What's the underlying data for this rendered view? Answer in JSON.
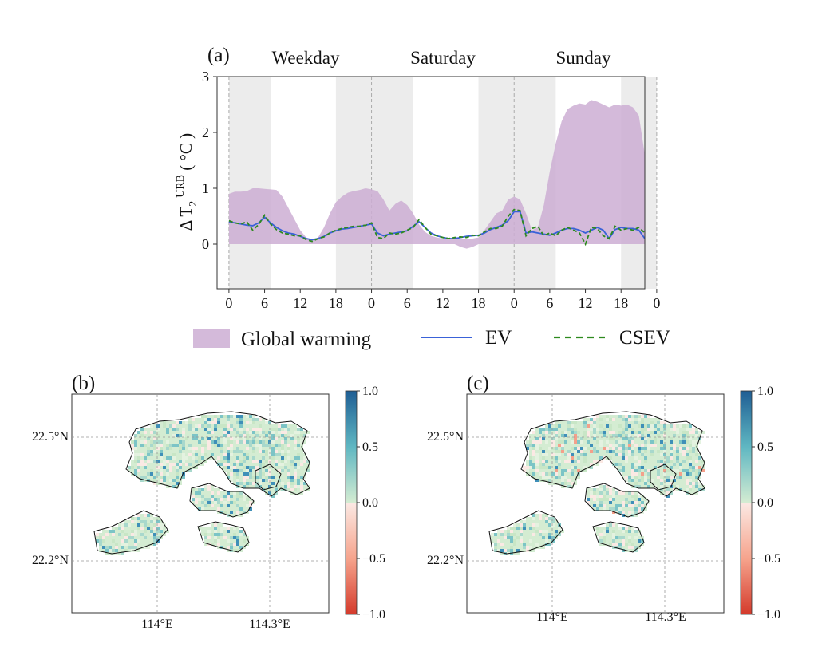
{
  "chart_data": [
    {
      "panel": "(a)",
      "type": "area+line",
      "ylabel": "Δ T2 URB ( °C )",
      "ylabel_main": "Δ T",
      "ylabel_sub": "2",
      "ylabel_sup": "URB",
      "ylabel_unit": " ( °C )",
      "ylim": [
        -0.8,
        3
      ],
      "yticks": [
        0,
        1,
        2,
        3
      ],
      "ytick_labels": [
        "0",
        "1",
        "2",
        "3"
      ],
      "xlim": [
        -2,
        70
      ],
      "xticks": [
        0,
        6,
        12,
        18,
        24,
        30,
        36,
        42,
        48,
        54,
        60,
        66,
        72
      ],
      "xtick_labels": [
        "0",
        "6",
        "12",
        "18",
        "0",
        "6",
        "12",
        "18",
        "0",
        "6",
        "12",
        "18",
        "0"
      ],
      "day_labels": [
        "Weekday",
        "Saturday",
        "Sunday"
      ],
      "shaded_hours": [
        [
          0,
          7
        ],
        [
          18,
          31
        ],
        [
          42,
          55
        ],
        [
          66,
          72
        ]
      ],
      "dashed_vlines": [
        0,
        24,
        48,
        72
      ],
      "legend": {
        "placement": "below",
        "entries": [
          "Global warming",
          "EV",
          "CSEV"
        ]
      },
      "x": [
        0,
        1,
        2,
        3,
        4,
        5,
        6,
        7,
        8,
        9,
        10,
        11,
        12,
        13,
        14,
        15,
        16,
        17,
        18,
        19,
        20,
        21,
        22,
        23,
        24,
        25,
        26,
        27,
        28,
        29,
        30,
        31,
        32,
        33,
        34,
        35,
        36,
        37,
        38,
        39,
        40,
        41,
        42,
        43,
        44,
        45,
        46,
        47,
        48,
        49,
        50,
        51,
        52,
        53,
        54,
        55,
        56,
        57,
        58,
        59,
        60,
        61,
        62,
        63,
        64,
        65,
        66,
        67,
        68,
        69,
        70,
        71,
        72
      ],
      "series": [
        {
          "name": "Global warming",
          "style": "filled-area",
          "color": "#cdaed3",
          "upper": [
            0.9,
            0.94,
            0.94,
            0.95,
            1.0,
            1.0,
            0.99,
            0.98,
            0.97,
            0.85,
            0.65,
            0.45,
            0.25,
            0.12,
            0.08,
            0.12,
            0.3,
            0.55,
            0.75,
            0.85,
            0.92,
            0.95,
            0.97,
            1.0,
            0.98,
            0.95,
            0.8,
            0.6,
            0.72,
            0.78,
            0.7,
            0.55,
            0.35,
            0.22,
            0.15,
            0.12,
            0.1,
            0.1,
            0.1,
            0.1,
            0.1,
            0.1,
            0.12,
            0.25,
            0.4,
            0.55,
            0.6,
            0.8,
            0.85,
            0.8,
            0.55,
            0.25,
            0.3,
            0.7,
            1.3,
            1.8,
            2.2,
            2.42,
            2.48,
            2.52,
            2.5,
            2.58,
            2.55,
            2.5,
            2.45,
            2.5,
            2.48,
            2.5,
            2.45,
            2.3,
            1.6,
            null,
            null
          ],
          "lower": [
            0,
            0,
            0,
            0,
            0,
            0,
            0,
            0,
            0,
            0,
            0,
            0,
            0,
            0,
            0,
            0,
            0,
            0,
            0,
            0,
            0,
            0,
            0,
            0,
            0,
            0,
            0,
            0,
            0,
            0,
            0,
            0,
            0,
            0,
            0,
            0,
            0,
            0,
            0,
            -0.05,
            -0.08,
            -0.05,
            0,
            0,
            0,
            0,
            0,
            0,
            0,
            0,
            0,
            0,
            0,
            0,
            0,
            0,
            0,
            0,
            0,
            0,
            0,
            0,
            0,
            0,
            0,
            0,
            0,
            0,
            0,
            0,
            0,
            null,
            null
          ]
        },
        {
          "name": "EV",
          "style": "solid-line",
          "color": "#3a62d8",
          "values": [
            0.4,
            0.38,
            0.36,
            0.34,
            0.33,
            0.38,
            0.48,
            0.38,
            0.3,
            0.24,
            0.2,
            0.18,
            0.14,
            0.1,
            0.08,
            0.1,
            0.14,
            0.2,
            0.24,
            0.27,
            0.28,
            0.3,
            0.32,
            0.34,
            0.36,
            0.2,
            0.15,
            0.18,
            0.2,
            0.22,
            0.24,
            0.32,
            0.4,
            0.3,
            0.2,
            0.15,
            0.12,
            0.1,
            0.1,
            0.12,
            0.14,
            0.15,
            0.16,
            0.2,
            0.26,
            0.3,
            0.34,
            0.42,
            0.58,
            0.58,
            0.2,
            0.22,
            0.2,
            0.18,
            0.16,
            0.2,
            0.25,
            0.28,
            0.28,
            0.25,
            0.2,
            0.25,
            0.3,
            0.25,
            0.1,
            0.26,
            0.3,
            0.28,
            0.28,
            0.25,
            0.1,
            null,
            null
          ]
        },
        {
          "name": "CSEV",
          "style": "dashed-line",
          "color": "#2d8a1e",
          "values": [
            0.42,
            0.38,
            0.36,
            0.4,
            0.25,
            0.35,
            0.52,
            0.36,
            0.26,
            0.2,
            0.18,
            0.15,
            0.15,
            0.08,
            0.05,
            0.1,
            0.13,
            0.2,
            0.25,
            0.28,
            0.3,
            0.32,
            0.32,
            0.34,
            0.38,
            0.12,
            0.1,
            0.2,
            0.18,
            0.2,
            0.25,
            0.3,
            0.44,
            0.3,
            0.18,
            0.15,
            0.12,
            0.1,
            0.12,
            0.13,
            0.12,
            0.16,
            0.15,
            0.22,
            0.28,
            0.28,
            0.32,
            0.5,
            0.62,
            0.6,
            0.15,
            0.28,
            0.32,
            0.15,
            0.2,
            0.15,
            0.25,
            0.3,
            0.25,
            0.2,
            0.0,
            0.3,
            0.28,
            0.15,
            0.1,
            0.32,
            0.25,
            0.28,
            0.25,
            0.3,
            0.2,
            null,
            null
          ]
        }
      ]
    },
    {
      "panel": "(b)",
      "type": "heatmap",
      "lat_labels": [
        "22.5°N",
        "22.2°N"
      ],
      "lon_labels": [
        "114°E",
        "114.3°E"
      ],
      "colorbar_ticks": [
        "1.0",
        "0.5",
        "0.0",
        "−0.5",
        "−1.0"
      ],
      "colorbar_range": [
        -1.0,
        1.0
      ],
      "colormap": [
        "#d43a2b",
        "#f6a48d",
        "#fbe9e4",
        "#d4ecd2",
        "#5fb7c2",
        "#1f5e94"
      ]
    },
    {
      "panel": "(c)",
      "type": "heatmap",
      "lat_labels": [
        "22.5°N",
        "22.2°N"
      ],
      "lon_labels": [
        "114°E",
        "114.3°E"
      ],
      "colorbar_ticks": [
        "1.0",
        "0.5",
        "0.0",
        "−0.5",
        "−1.0"
      ],
      "colorbar_range": [
        -1.0,
        1.0
      ],
      "colormap": [
        "#d43a2b",
        "#f6a48d",
        "#fbe9e4",
        "#d4ecd2",
        "#5fb7c2",
        "#1f5e94"
      ]
    }
  ]
}
